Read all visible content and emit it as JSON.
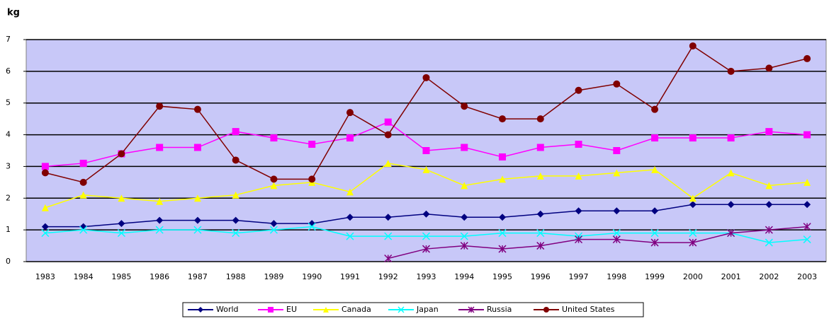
{
  "chart_data": {
    "type": "line",
    "ylabel": "kg",
    "categories": [
      "1983",
      "1984",
      "1985",
      "1986",
      "1987",
      "1988",
      "1989",
      "1990",
      "1991",
      "1992",
      "1993",
      "1994",
      "1995",
      "1996",
      "1997",
      "1998",
      "1999",
      "2000",
      "2001",
      "2002",
      "2003"
    ],
    "ylim": [
      0,
      7
    ],
    "yticks": [
      0,
      1,
      2,
      3,
      4,
      5,
      6,
      7
    ],
    "grid": true,
    "legend": "bottom",
    "series": [
      {
        "name": "World",
        "color": "#000080",
        "marker": "diamond",
        "values": [
          1.1,
          1.1,
          1.2,
          1.3,
          1.3,
          1.3,
          1.2,
          1.2,
          1.4,
          1.4,
          1.5,
          1.4,
          1.4,
          1.5,
          1.6,
          1.6,
          1.6,
          1.8,
          1.8,
          1.8,
          1.8
        ]
      },
      {
        "name": "EU",
        "color": "#ff00ff",
        "marker": "square",
        "values": [
          3.0,
          3.1,
          3.4,
          3.6,
          3.6,
          4.1,
          3.9,
          3.7,
          3.9,
          4.4,
          3.5,
          3.6,
          3.3,
          3.6,
          3.7,
          3.5,
          3.9,
          3.9,
          3.9,
          4.1,
          4.0
        ]
      },
      {
        "name": "Canada",
        "color": "#ffff00",
        "marker": "triangle",
        "values": [
          1.7,
          2.1,
          2.0,
          1.9,
          2.0,
          2.1,
          2.4,
          2.5,
          2.2,
          3.1,
          2.9,
          2.4,
          2.6,
          2.7,
          2.7,
          2.8,
          2.9,
          2.0,
          2.8,
          2.4,
          2.5
        ]
      },
      {
        "name": "Japan",
        "color": "#00ffff",
        "marker": "x",
        "values": [
          0.9,
          1.0,
          0.9,
          1.0,
          1.0,
          0.9,
          1.0,
          1.1,
          0.8,
          0.8,
          0.8,
          0.8,
          0.9,
          0.9,
          0.8,
          0.9,
          0.9,
          0.9,
          0.9,
          0.6,
          0.7
        ]
      },
      {
        "name": "Russia",
        "color": "#800080",
        "marker": "star",
        "values": [
          null,
          null,
          null,
          null,
          null,
          null,
          null,
          null,
          null,
          0.1,
          0.4,
          0.5,
          0.4,
          0.5,
          0.7,
          0.7,
          0.6,
          0.6,
          0.9,
          1.0,
          1.1
        ]
      },
      {
        "name": "United States",
        "color": "#800000",
        "marker": "circle",
        "values": [
          2.8,
          2.5,
          3.4,
          4.9,
          4.8,
          3.2,
          2.6,
          2.6,
          4.7,
          4.0,
          5.8,
          4.9,
          4.5,
          4.5,
          5.4,
          5.6,
          4.8,
          6.8,
          6.0,
          6.1,
          6.4
        ]
      }
    ]
  }
}
